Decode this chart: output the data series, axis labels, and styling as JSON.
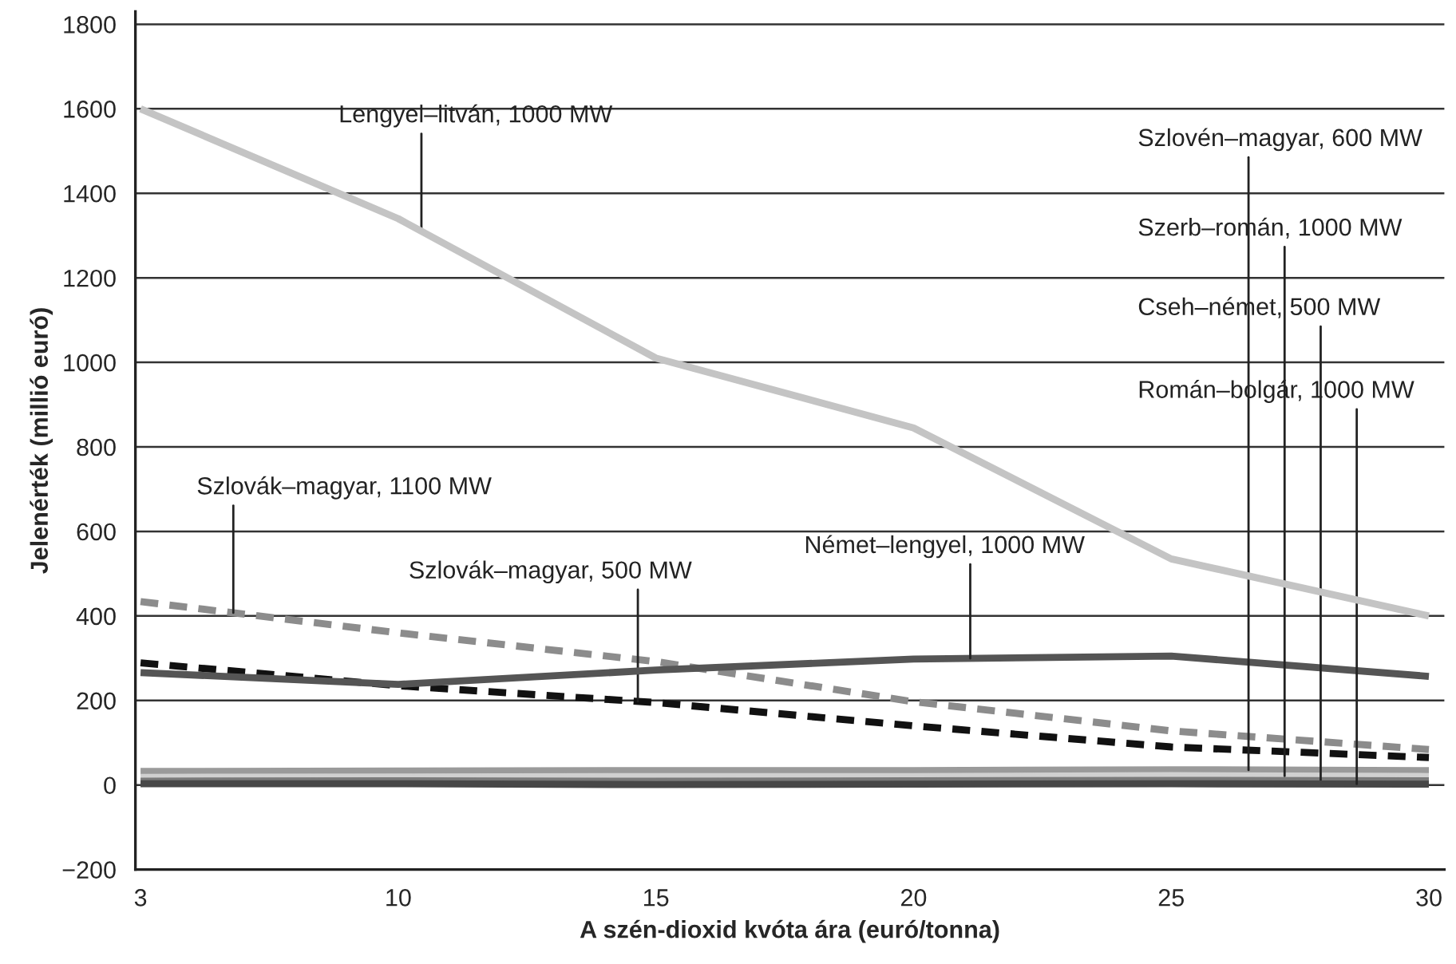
{
  "chart_data": {
    "type": "line",
    "xlabel": "A szén-dioxid kvóta ára (euró/tonna)",
    "ylabel": "Jelenérték (millió euró)",
    "categories": [
      "3",
      "10",
      "15",
      "20",
      "25",
      "30"
    ],
    "ylim": [
      -200,
      1830
    ],
    "yticks": [
      {
        "value": -200,
        "label": "−200"
      },
      0,
      200,
      400,
      600,
      800,
      1000,
      1200,
      1400,
      1600,
      1800
    ],
    "grid": "y",
    "legend": false,
    "marker": "none",
    "series": [
      {
        "name": "Lengyel–litván, 1000 MW",
        "color": "#c4c4c4",
        "line_style": "solid",
        "values": [
          1600,
          1340,
          1010,
          845,
          535,
          400
        ]
      },
      {
        "name": "Szlovák–magyar, 1100 MW",
        "color": "#8c8c8c",
        "line_style": "dashed",
        "values": [
          434,
          360,
          292,
          197,
          128,
          84
        ]
      },
      {
        "name": "Szlovák–magyar, 500 MW",
        "color": "#111111",
        "line_style": "dashed",
        "values": [
          289,
          235,
          195,
          140,
          90,
          65
        ]
      },
      {
        "name": "Német–lengyel, 1000 MW",
        "color": "#555555",
        "line_style": "solid",
        "values": [
          266,
          238,
          272,
          298,
          305,
          257
        ]
      },
      {
        "name": "Szlovén–magyar, 600 MW",
        "color": "#9a9a9a",
        "line_style": "solid",
        "values": [
          32,
          33,
          34,
          34,
          36,
          34
        ]
      },
      {
        "name": "Szerb–román, 1000 MW",
        "color": "#d0d0d0",
        "line_style": "solid",
        "values": [
          18,
          19,
          20,
          20,
          22,
          20
        ]
      },
      {
        "name": "Cseh–német, 500 MW",
        "color": "#7a7a7a",
        "line_style": "solid",
        "values": [
          9,
          10,
          9,
          10,
          11,
          10
        ]
      },
      {
        "name": "Román–bolgár, 1000 MW",
        "color": "#474747",
        "line_style": "solid",
        "values": [
          3,
          3,
          1,
          2,
          3,
          2
        ]
      }
    ]
  }
}
